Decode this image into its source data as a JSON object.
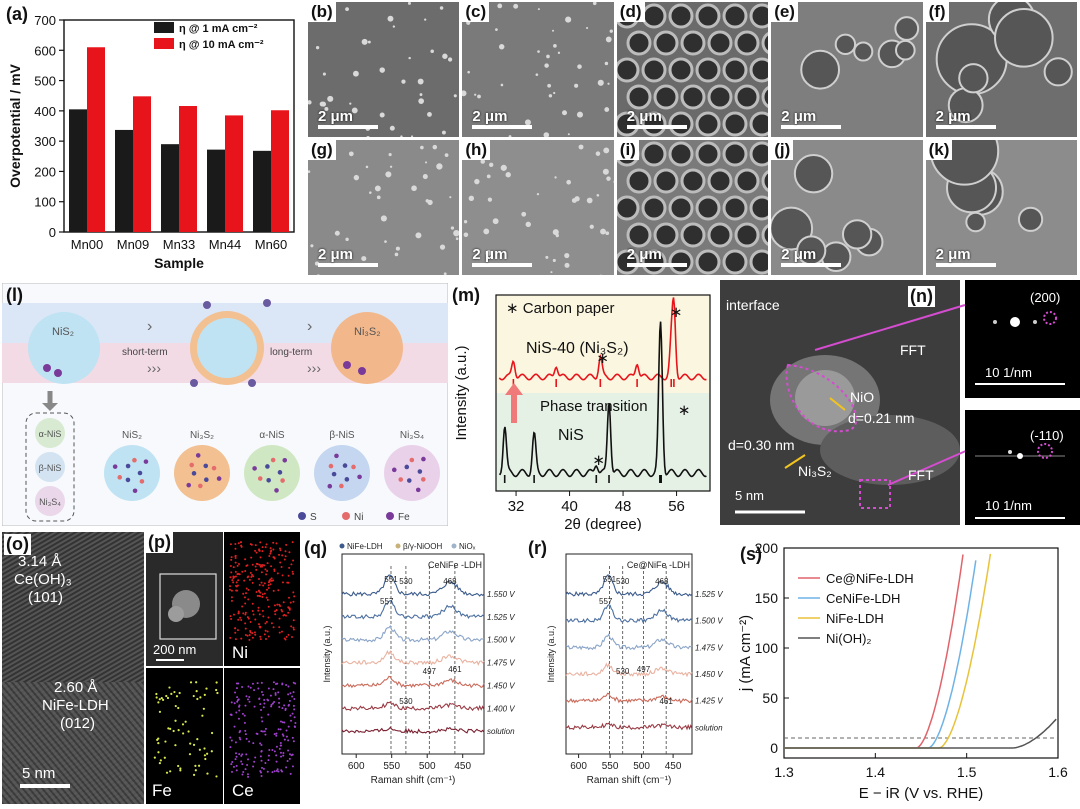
{
  "panel_labels": {
    "a": "(a)",
    "b": "(b)",
    "c": "(c)",
    "d": "(d)",
    "e": "(e)",
    "f": "(f)",
    "g": "(g)",
    "h": "(h)",
    "i": "(i)",
    "j": "(j)",
    "k": "(k)",
    "l": "(l)",
    "m": "(m)",
    "n": "(n)",
    "o": "(o)",
    "p": "(p)",
    "q": "(q)",
    "r": "(r)",
    "s": "(s)"
  },
  "sem_scale": "2 μm",
  "chart_data": [
    {
      "id": "a",
      "type": "bar",
      "categories": [
        "Mn00",
        "Mn09",
        "Mn33",
        "Mn44",
        "Mn60"
      ],
      "series": [
        {
          "name": "η @ 1 mA cm⁻²",
          "values": [
            405,
            337,
            290,
            272,
            268
          ],
          "color": "#1a1a1a"
        },
        {
          "name": "η @ 10 mA cm⁻²",
          "values": [
            610,
            448,
            416,
            385,
            402
          ],
          "color": "#e8141b"
        }
      ],
      "xlabel": "Sample",
      "ylabel": "Overpotential / mV",
      "ylim": [
        0,
        700
      ],
      "yticks": [
        "0",
        "100",
        "200",
        "300",
        "400",
        "500",
        "600",
        "700"
      ],
      "legend": "top-right"
    },
    {
      "id": "m",
      "type": "line",
      "xlabel": "2θ (degree)",
      "ylabel": "Intensity (a.u.)",
      "xlim": [
        29,
        61
      ],
      "xticks": [
        "32",
        "40",
        "48",
        "56"
      ],
      "series": [
        {
          "name": "NiS-40 (Ni₃S₂)",
          "color": "#e8141b",
          "peaks": [
            [
              31.6,
              0.25
            ],
            [
              38.0,
              0.18
            ],
            [
              44.6,
              0.3
            ],
            [
              50.1,
              0.22
            ],
            [
              55.2,
              0.45
            ],
            [
              55.6,
              1.0
            ]
          ]
        },
        {
          "name": "NiS",
          "color": "#111111",
          "peaks": [
            [
              30.3,
              0.55
            ],
            [
              34.7,
              0.45
            ],
            [
              45.9,
              0.85
            ],
            [
              53.5,
              0.9
            ],
            [
              53.7,
              1.0
            ],
            [
              44.0,
              0.12
            ]
          ]
        }
      ],
      "annotations": [
        "∗ Carbon paper",
        "Phase transition",
        "∗"
      ]
    },
    {
      "id": "q",
      "type": "line",
      "xlabel": "Raman shift (cm⁻¹)",
      "ylabel": "Intensity (a.u.)",
      "xticks": [
        "600",
        "550",
        "500",
        "450"
      ],
      "title": "CeNiFe -LDH",
      "legend_items": [
        "NiFe-LDH",
        "β/γ-NiOOH",
        "NiOₓ"
      ],
      "series_labels": [
        "1.550 V",
        "1.525 V",
        "1.500 V",
        "1.475 V",
        "1.450 V",
        "1.400 V",
        "solution"
      ],
      "peak_labels": [
        "551",
        "557",
        "530",
        "468",
        "497",
        "461",
        "530"
      ]
    },
    {
      "id": "r",
      "type": "line",
      "xlabel": "Raman shift (cm⁻¹)",
      "ylabel": "Intensity (a.u.)",
      "xticks": [
        "600",
        "550",
        "500",
        "450"
      ],
      "title": "Ce@NiFe -LDH",
      "series_labels": [
        "1.525 V",
        "1.500 V",
        "1.475 V",
        "1.450 V",
        "1.425 V",
        "solution"
      ],
      "peak_labels": [
        "551",
        "557",
        "530",
        "468",
        "530",
        "497",
        "461"
      ]
    },
    {
      "id": "s",
      "type": "line",
      "xlabel": "E − iR  (V vs. RHE)",
      "ylabel": "j  (mA cm⁻²)",
      "xlim": [
        1.3,
        1.6
      ],
      "ylim": [
        -10,
        200
      ],
      "xticks": [
        "1.3",
        "1.4",
        "1.5",
        "1.6"
      ],
      "yticks": [
        "0",
        "50",
        "100",
        "150",
        "200"
      ],
      "series": [
        {
          "name": "Ce@NiFe-LDH",
          "color": "#e0646a",
          "onset": 1.445,
          "x200": 1.497
        },
        {
          "name": "CeNiFe-LDH",
          "color": "#6fb3e6",
          "onset": 1.458,
          "x200": 1.512
        },
        {
          "name": "NiFe-LDH",
          "color": "#e8c23a",
          "onset": 1.47,
          "x200": 1.527
        },
        {
          "name": "Ni(OH)₂",
          "color": "#555555",
          "onset": 1.55,
          "x200": 1.7
        }
      ],
      "legend": "upper-left"
    }
  ],
  "panel_l": {
    "states": [
      "NiS₂",
      "Ni₃S₂"
    ],
    "arrows": [
      "short-term",
      "long-term"
    ],
    "phases": [
      "NiS₂",
      "Ni₃S₂",
      "α-NiS",
      "β-NiS",
      "Ni₃S₄"
    ],
    "side_phases": [
      "α-NiS",
      "β-NiS",
      "Ni₃S₄"
    ],
    "legend": [
      "S",
      "Ni",
      "Fe"
    ]
  },
  "panel_n": {
    "labels": [
      "interface",
      "NiO",
      "d=0.21 nm",
      "d=0.30 nm",
      "Ni₃S₂",
      "FFT",
      "FFT",
      "5 nm"
    ],
    "fft_top": [
      "(200)",
      "10 1/nm"
    ],
    "fft_bottom": [
      "(-110)",
      "10 1/nm"
    ]
  },
  "panel_o": {
    "labels": [
      "3.14 Å",
      "Ce(OH)₃",
      "(101)",
      "2.60 Å",
      "NiFe-LDH",
      "(012)",
      "5 nm"
    ]
  },
  "panel_p": {
    "labels": [
      "200 nm",
      "Ni",
      "Fe",
      "Ce"
    ]
  }
}
